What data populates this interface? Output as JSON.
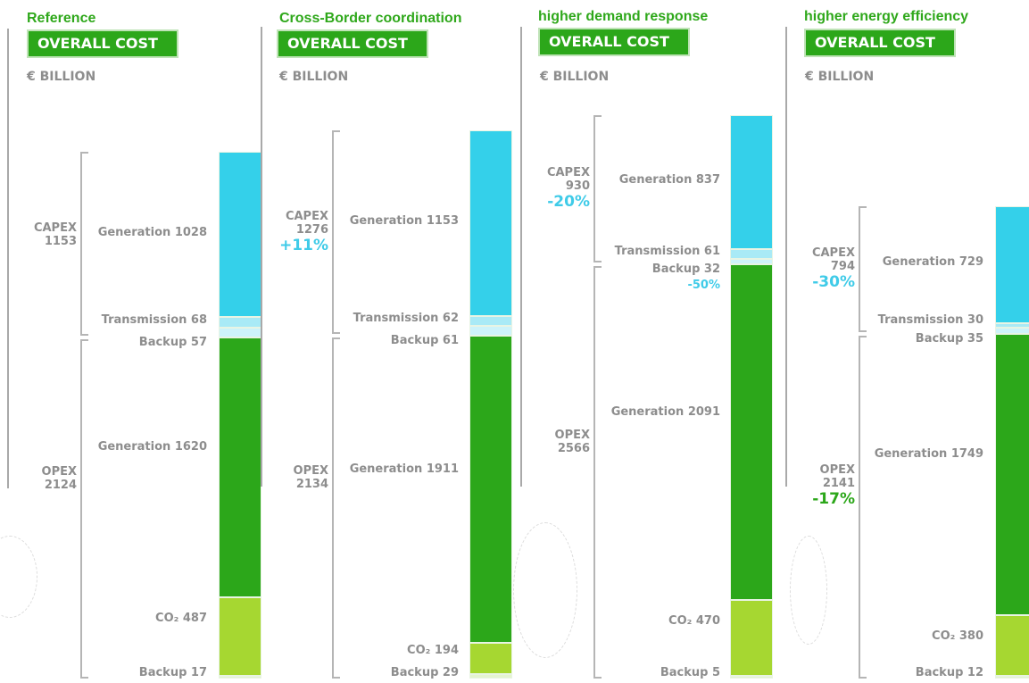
{
  "colors": {
    "capex_generation": "#34d0ea",
    "capex_transmission": "#a9eaf6",
    "capex_backup": "#cdf3fa",
    "opex_generation": "#2ca71a",
    "opex_co2": "#a6d731",
    "opex_backup": "#e4f4cf",
    "title_green": "#2fa81b",
    "text_gray": "#8d8d8d",
    "pct_blue": "#3fcbe8",
    "pct_green": "#2ca71a"
  },
  "chart_data": [
    {
      "type": "bar",
      "title": "Reference",
      "subtitle": "OVERALL COST",
      "unit": "€ BILLION",
      "groups": {
        "capex": {
          "label": "CAPEX",
          "total": "1153",
          "pct": ""
        },
        "opex": {
          "label": "OPEX",
          "total": "2124",
          "pct": ""
        }
      },
      "segments": [
        {
          "group": "capex",
          "name": "Generation",
          "value": 1028,
          "label": "Generation 1028",
          "note": ""
        },
        {
          "group": "capex",
          "name": "Transmission",
          "value": 68,
          "label": "Transmission 68",
          "note": ""
        },
        {
          "group": "capex",
          "name": "Backup",
          "value": 57,
          "label": "Backup 57",
          "note": ""
        },
        {
          "group": "opex",
          "name": "Generation",
          "value": 1620,
          "label": "Generation 1620",
          "note": ""
        },
        {
          "group": "opex",
          "name": "CO2",
          "value": 487,
          "label": "CO₂ 487",
          "note": ""
        },
        {
          "group": "opex",
          "name": "Backup",
          "value": 17,
          "label": "Backup 17",
          "note": ""
        }
      ]
    },
    {
      "type": "bar",
      "title": "Cross-Border coordination",
      "subtitle": "OVERALL COST",
      "unit": "€ BILLION",
      "groups": {
        "capex": {
          "label": "CAPEX",
          "total": "1276",
          "pct": "+11%"
        },
        "opex": {
          "label": "OPEX",
          "total": "2134",
          "pct": ""
        }
      },
      "segments": [
        {
          "group": "capex",
          "name": "Generation",
          "value": 1153,
          "label": "Generation 1153",
          "note": ""
        },
        {
          "group": "capex",
          "name": "Transmission",
          "value": 62,
          "label": "Transmission 62",
          "note": ""
        },
        {
          "group": "capex",
          "name": "Backup",
          "value": 61,
          "label": "Backup 61",
          "note": ""
        },
        {
          "group": "opex",
          "name": "Generation",
          "value": 1911,
          "label": "Generation 1911",
          "note": ""
        },
        {
          "group": "opex",
          "name": "CO2",
          "value": 194,
          "label": "CO₂ 194",
          "note": ""
        },
        {
          "group": "opex",
          "name": "Backup",
          "value": 29,
          "label": "Backup 29",
          "note": ""
        }
      ]
    },
    {
      "type": "bar",
      "title": "higher demand response",
      "subtitle": "OVERALL COST",
      "unit": "€ BILLION",
      "groups": {
        "capex": {
          "label": "CAPEX",
          "total": "930",
          "pct": "-20%"
        },
        "opex": {
          "label": "OPEX",
          "total": "2566",
          "pct": ""
        }
      },
      "segments": [
        {
          "group": "capex",
          "name": "Generation",
          "value": 837,
          "label": "Generation 837",
          "note": ""
        },
        {
          "group": "capex",
          "name": "Transmission",
          "value": 61,
          "label": "Transmission 61",
          "note": ""
        },
        {
          "group": "capex",
          "name": "Backup",
          "value": 32,
          "label": "Backup 32",
          "note": "-50%"
        },
        {
          "group": "opex",
          "name": "Generation",
          "value": 2091,
          "label": "Generation 2091",
          "note": ""
        },
        {
          "group": "opex",
          "name": "CO2",
          "value": 470,
          "label": "CO₂ 470",
          "note": ""
        },
        {
          "group": "opex",
          "name": "Backup",
          "value": 5,
          "label": "Backup 5",
          "note": ""
        }
      ]
    },
    {
      "type": "bar",
      "title": "higher energy efficiency",
      "subtitle": "OVERALL COST",
      "unit": "€ BILLION",
      "groups": {
        "capex": {
          "label": "CAPEX",
          "total": "794",
          "pct": "-30%"
        },
        "opex": {
          "label": "OPEX",
          "total": "2141",
          "pct": "-17%"
        }
      },
      "segments": [
        {
          "group": "capex",
          "name": "Generation",
          "value": 729,
          "label": "Generation 729",
          "note": ""
        },
        {
          "group": "capex",
          "name": "Transmission",
          "value": 30,
          "label": "Transmission 30",
          "note": ""
        },
        {
          "group": "capex",
          "name": "Backup",
          "value": 35,
          "label": "Backup 35",
          "note": ""
        },
        {
          "group": "opex",
          "name": "Generation",
          "value": 1749,
          "label": "Generation 1749",
          "note": ""
        },
        {
          "group": "opex",
          "name": "CO2",
          "value": 380,
          "label": "CO₂ 380",
          "note": ""
        },
        {
          "group": "opex",
          "name": "Backup",
          "value": 12,
          "label": "Backup 12",
          "note": ""
        }
      ]
    }
  ]
}
